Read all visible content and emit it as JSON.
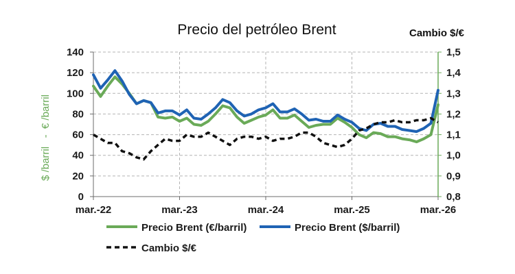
{
  "chart_data": {
    "type": "line",
    "title": "Precio del petróleo Brent",
    "ylabel_left": "$ /barril   -  € /barril",
    "ylabel_right": "Cambio $/€",
    "ylim_left": [
      0,
      140
    ],
    "yticks_left": [
      "0",
      "20",
      "40",
      "60",
      "80",
      "100",
      "120",
      "140"
    ],
    "ylim_right": [
      0.8,
      1.5
    ],
    "yticks_right": [
      "0,8",
      "0,9",
      "1,0",
      "1,1",
      "1,2",
      "1,3",
      "1,4",
      "1,5"
    ],
    "x_tick_labels": [
      "mar.-22",
      "mar.-23",
      "mar.-24",
      "mar.-25",
      "mar.-26"
    ],
    "x": [
      "2022-03",
      "2022-04",
      "2022-05",
      "2022-06",
      "2022-07",
      "2022-08",
      "2022-09",
      "2022-10",
      "2022-11",
      "2022-12",
      "2023-01",
      "2023-02",
      "2023-03",
      "2023-04",
      "2023-05",
      "2023-06",
      "2023-07",
      "2023-08",
      "2023-09",
      "2023-10",
      "2023-11",
      "2023-12",
      "2024-01",
      "2024-02",
      "2024-03",
      "2024-04",
      "2024-05",
      "2024-06",
      "2024-07",
      "2024-08",
      "2024-09",
      "2024-10",
      "2024-11",
      "2024-12",
      "2025-01",
      "2025-02",
      "2025-03",
      "2025-04",
      "2025-05",
      "2025-06",
      "2025-07",
      "2025-08",
      "2025-09",
      "2025-10",
      "2025-11",
      "2025-12",
      "2026-01",
      "2026-02",
      "2026-03"
    ],
    "grid": true,
    "legend_position": "bottom",
    "series": [
      {
        "name": "Precio Brent (€/barril)",
        "axis": "left",
        "color": "#6aaa58",
        "style": "solid",
        "values": [
          107,
          97,
          107,
          116,
          109,
          100,
          90,
          93,
          91,
          77,
          76,
          77,
          73,
          76,
          70,
          69,
          73,
          80,
          88,
          86,
          77,
          71,
          74,
          77,
          79,
          84,
          76,
          76,
          79,
          73,
          67,
          69,
          70,
          70,
          76,
          72,
          67,
          60,
          57,
          62,
          61,
          58,
          58,
          56,
          55,
          53,
          56,
          60,
          89
        ]
      },
      {
        "name": "Precio Brent ($/barril)",
        "axis": "left",
        "color": "#1f63b4",
        "style": "solid",
        "values": [
          118,
          105,
          113,
          122,
          112,
          99,
          90,
          93,
          91,
          81,
          83,
          83,
          79,
          84,
          76,
          75,
          80,
          86,
          94,
          91,
          83,
          78,
          80,
          84,
          86,
          90,
          82,
          82,
          85,
          80,
          74,
          75,
          73,
          73,
          79,
          75,
          72,
          66,
          64,
          70,
          71,
          68,
          68,
          65,
          64,
          63,
          66,
          71,
          103
        ]
      },
      {
        "name": "Cambio $/€",
        "axis": "right",
        "color": "#111111",
        "style": "dashed",
        "values": [
          1.1,
          1.08,
          1.06,
          1.06,
          1.02,
          1.01,
          0.99,
          0.98,
          1.02,
          1.05,
          1.08,
          1.07,
          1.07,
          1.1,
          1.09,
          1.09,
          1.11,
          1.09,
          1.07,
          1.05,
          1.08,
          1.09,
          1.09,
          1.08,
          1.09,
          1.07,
          1.08,
          1.08,
          1.09,
          1.11,
          1.11,
          1.09,
          1.06,
          1.05,
          1.04,
          1.05,
          1.08,
          1.12,
          1.13,
          1.15,
          1.16,
          1.16,
          1.17,
          1.16,
          1.16,
          1.17,
          1.17,
          1.18,
          1.16
        ]
      }
    ]
  }
}
